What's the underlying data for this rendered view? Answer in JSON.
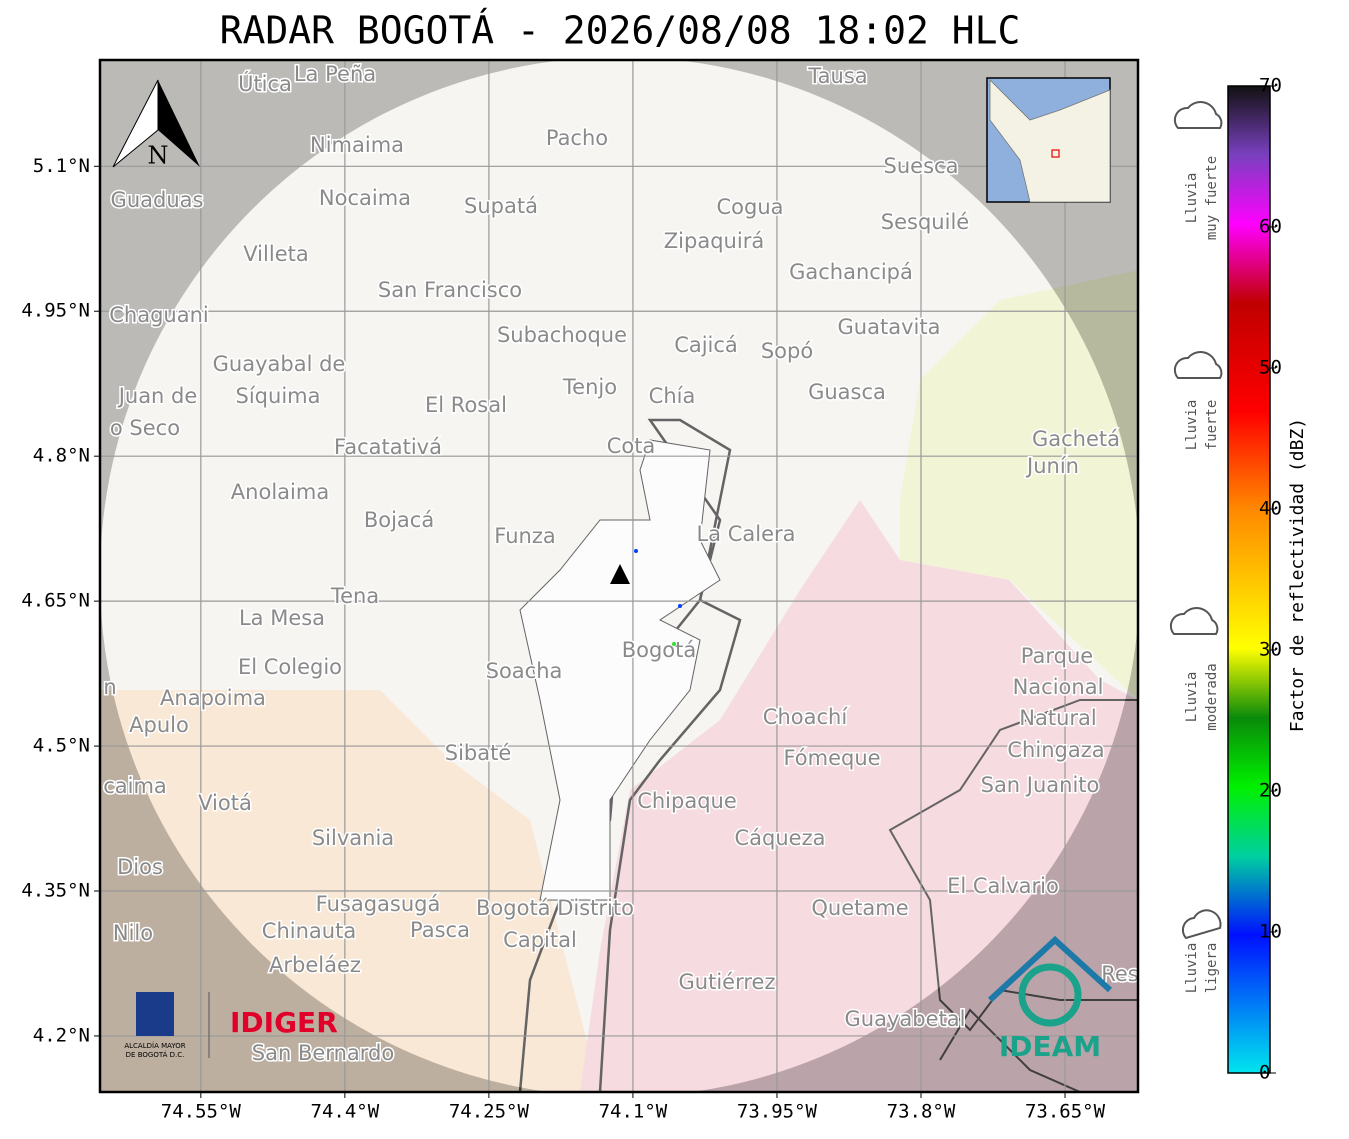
{
  "title": "RADAR BOGOTÁ - 2026/08/08 18:02 HLC",
  "map": {
    "xlim": [
      -74.655,
      -73.574
    ],
    "ylim": [
      4.142,
      5.21
    ],
    "xticks": [
      {
        "value": -74.55,
        "label": "74.55°W"
      },
      {
        "value": -74.4,
        "label": "74.4°W"
      },
      {
        "value": -74.25,
        "label": "74.25°W"
      },
      {
        "value": -74.1,
        "label": "74.1°W"
      },
      {
        "value": -73.95,
        "label": "73.95°W"
      },
      {
        "value": -73.8,
        "label": "73.8°W"
      },
      {
        "value": -73.65,
        "label": "73.65°W"
      }
    ],
    "yticks": [
      {
        "value": 5.1,
        "label": "5.1°N"
      },
      {
        "value": 4.95,
        "label": "4.95°N"
      },
      {
        "value": 4.8,
        "label": "4.8°N"
      },
      {
        "value": 4.65,
        "label": "4.65°N"
      },
      {
        "value": 4.5,
        "label": "4.5°N"
      },
      {
        "value": 4.35,
        "label": "4.35°N"
      },
      {
        "value": 4.2,
        "label": "4.2°N"
      }
    ],
    "grid": true,
    "north": "N",
    "places": [
      "Útica",
      "La Peña",
      "Tausa",
      "Pacho",
      "Nimaima",
      "Guaduas",
      "Nocaima",
      "Supatá",
      "Cogua",
      "Suesca",
      "Sesquilé",
      "Zipaquirá",
      "Villeta",
      "Gachancipá",
      "San Francisco",
      "Chaguani",
      "Guatavita",
      "Subachoque",
      "Cajicá",
      "Sopó",
      "Guayabal de",
      "Síquima",
      "Juan de",
      "o Seco",
      "Tenjo",
      "El Rosal",
      "Chía",
      "Guasca",
      "Facatativá",
      "Cota",
      "Gachetá",
      "Junín",
      "Anolaima",
      "Bojacá",
      "Funza",
      "La Calera",
      "Tena",
      "La Mesa",
      "Bogotá",
      "Parque",
      "El Colegio",
      "Soacha",
      "Nacional",
      "Anapoima",
      "Apulo",
      "Choachí",
      "Natural",
      "Chingaza",
      "Sibaté",
      "Fómeque",
      "San Juanito",
      "caima",
      "Viotá",
      "Chipaque",
      "Silvania",
      "Cáqueza",
      "Dios",
      "El Calvario",
      "Fusagasugá",
      "Bogotá Distrito",
      "Quetame",
      "Nilo",
      "Chinauta",
      "Pasca",
      "Capital",
      "Arbeláez",
      "Gutiérrez",
      "Res",
      "Guayabetal",
      "San Bernardo",
      "n"
    ],
    "logos": {
      "alcaldia": [
        "ALCALDÍA MAYOR",
        "DE BOGOTÁ D.C."
      ],
      "idiger": "IDIGER",
      "ideam": "IDEAM"
    }
  },
  "colorbar": {
    "label": "Factor de reflectividad (dBZ)",
    "clim": [
      0,
      70
    ],
    "ticks": [
      0,
      10,
      20,
      30,
      40,
      50,
      60,
      70
    ],
    "rain": [
      [
        "Lluvia",
        "ligera"
      ],
      [
        "Lluvia",
        "moderada"
      ],
      [
        "Lluvia",
        "fuerte"
      ],
      [
        "Lluvia",
        "muy fuerte"
      ]
    ]
  }
}
